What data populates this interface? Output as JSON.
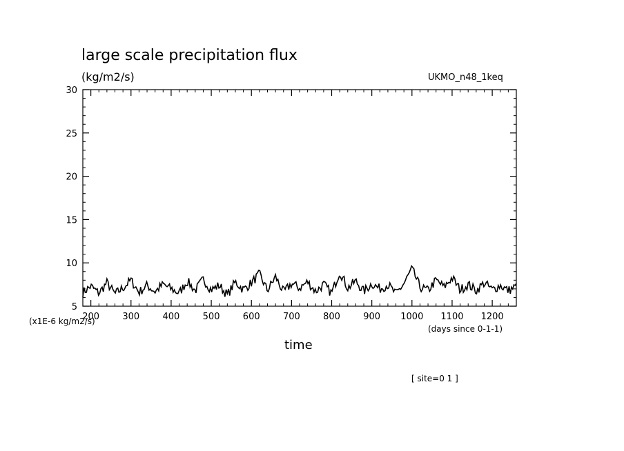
{
  "chart_data": {
    "type": "line",
    "title": "large scale precipitation flux",
    "units_label": "(kg/m2/s)",
    "model_label": "UKMO_n48_1keq",
    "y_scale_label": "(x1E-6 kg/m2/s)",
    "x_units_label": "(days since 0-1-1)",
    "xlabel": "time",
    "site_label": "[ site=0 1 ]",
    "xlim": [
      180,
      1260
    ],
    "ylim": [
      5,
      30
    ],
    "x_ticks": [
      200,
      300,
      400,
      500,
      600,
      700,
      800,
      900,
      1000,
      1100,
      1200
    ],
    "y_ticks": [
      5,
      10,
      15,
      20,
      25,
      30
    ],
    "grid": false,
    "series": [
      {
        "x": [
          180,
          200,
          220,
          240,
          260,
          280,
          300,
          320,
          340,
          360,
          380,
          400,
          420,
          440,
          460,
          480,
          500,
          520,
          540,
          560,
          580,
          600,
          620,
          640,
          660,
          680,
          700,
          720,
          740,
          760,
          780,
          800,
          820,
          840,
          860,
          880,
          900,
          920,
          940,
          960,
          980,
          1000,
          1020,
          1040,
          1060,
          1080,
          1100,
          1120,
          1140,
          1160,
          1180,
          1200,
          1220,
          1240,
          1260
        ],
        "y": [
          6.6,
          7.3,
          6.5,
          7.7,
          6.4,
          7.1,
          8.0,
          6.6,
          7.4,
          6.7,
          7.5,
          7.0,
          6.5,
          7.9,
          6.8,
          8.1,
          6.9,
          7.4,
          6.3,
          7.8,
          6.9,
          7.7,
          8.7,
          6.8,
          8.4,
          6.6,
          7.6,
          7.1,
          7.8,
          6.7,
          7.5,
          6.5,
          9.0,
          7.1,
          7.9,
          6.7,
          7.6,
          7.0,
          7.5,
          6.4,
          7.6,
          9.3,
          7.2,
          6.8,
          8.0,
          7.2,
          8.3,
          6.9,
          7.5,
          6.8,
          7.7,
          6.9,
          7.4,
          6.8,
          7.3
        ]
      }
    ]
  }
}
